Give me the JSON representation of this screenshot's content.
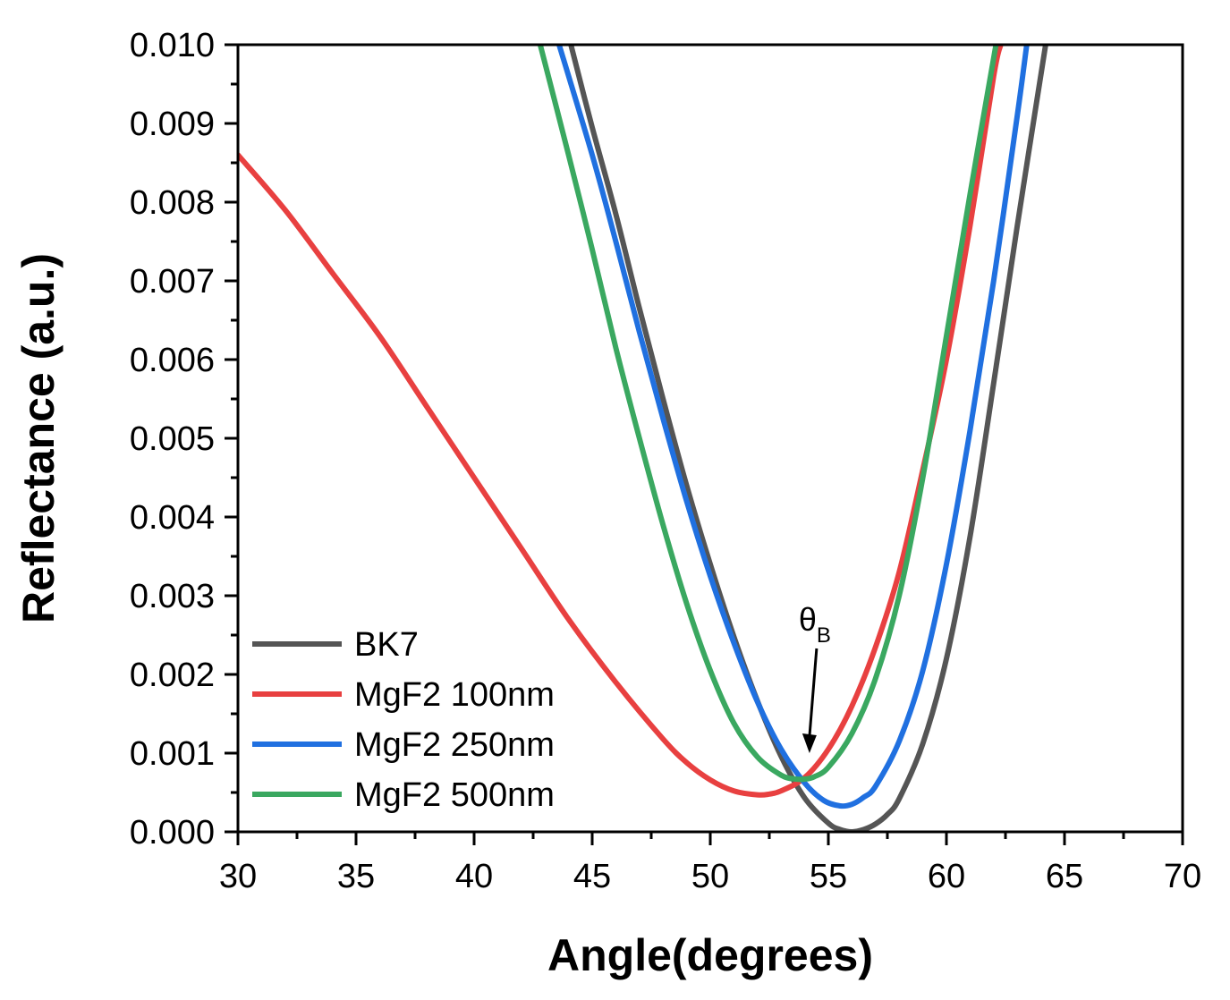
{
  "chart_data": {
    "type": "line",
    "title": "",
    "xlabel": "Angle(degrees)",
    "ylabel": "Reflectance (a.u.)",
    "xlim": [
      30,
      70
    ],
    "ylim": [
      0.0,
      0.01
    ],
    "grid": false,
    "legend_position": "bottom-left",
    "x_ticks": [
      "30",
      "35",
      "40",
      "45",
      "50",
      "55",
      "60",
      "65",
      "70"
    ],
    "y_ticks": [
      "0.000",
      "0.001",
      "0.002",
      "0.003",
      "0.004",
      "0.005",
      "0.006",
      "0.007",
      "0.008",
      "0.009",
      "0.010"
    ],
    "series": [
      {
        "name": "BK7",
        "color": "#555555",
        "x": [
          44.1,
          45,
          46,
          47,
          48,
          49,
          50,
          51,
          52,
          53,
          54,
          55,
          55.5,
          56,
          56.5,
          57,
          57.5,
          58,
          59,
          60,
          61,
          62,
          63,
          64.2
        ],
        "y": [
          0.01,
          0.00895,
          0.00785,
          0.00665,
          0.0055,
          0.0044,
          0.0034,
          0.00248,
          0.00166,
          0.00096,
          0.00043,
          0.00011,
          3e-05,
          0.0,
          3e-05,
          0.0001,
          0.00022,
          0.00042,
          0.00112,
          0.0022,
          0.00375,
          0.0057,
          0.0077,
          0.01
        ]
      },
      {
        "name": "MgF2 100nm",
        "color": "#e84040",
        "x": [
          30,
          32,
          34,
          36,
          38,
          40,
          42,
          44,
          46,
          48,
          49,
          50,
          51,
          52,
          52.5,
          53,
          54,
          55,
          56,
          57,
          58,
          59,
          60,
          61,
          62,
          62.3
        ],
        "y": [
          0.0086,
          0.0079,
          0.0071,
          0.0063,
          0.0054,
          0.0045,
          0.0036,
          0.0027,
          0.0019,
          0.00118,
          0.00088,
          0.00066,
          0.00052,
          0.00047,
          0.00048,
          0.00052,
          0.00069,
          0.00105,
          0.0016,
          0.00235,
          0.0033,
          0.0046,
          0.006,
          0.0077,
          0.0096,
          0.01
        ]
      },
      {
        "name": "MgF2 250nm",
        "color": "#2070e0",
        "x": [
          43.6,
          45,
          46,
          47,
          48,
          49,
          50,
          51,
          52,
          53,
          54,
          54.8,
          55.5,
          56,
          56.5,
          57,
          58,
          59,
          60,
          61,
          62,
          63,
          63.4
        ],
        "y": [
          0.01,
          0.0086,
          0.0075,
          0.00635,
          0.00525,
          0.0042,
          0.00325,
          0.0024,
          0.00165,
          0.00105,
          0.00062,
          0.0004,
          0.00033,
          0.00035,
          0.00044,
          0.00058,
          0.00115,
          0.00205,
          0.0034,
          0.0051,
          0.007,
          0.0091,
          0.01
        ]
      },
      {
        "name": "MgF2 500nm",
        "color": "#3aa860",
        "x": [
          42.8,
          44,
          45,
          46,
          47,
          48,
          49,
          50,
          51,
          52,
          53,
          53.6,
          54,
          54.4,
          55,
          56,
          57,
          58,
          59,
          60,
          61,
          62.1
        ],
        "y": [
          0.01,
          0.0086,
          0.0074,
          0.00615,
          0.005,
          0.0039,
          0.0029,
          0.00205,
          0.00138,
          0.00095,
          0.00072,
          0.00067,
          0.00067,
          0.0007,
          0.00082,
          0.00125,
          0.00195,
          0.003,
          0.0045,
          0.0063,
          0.0081,
          0.01
        ]
      }
    ],
    "annotations": [
      {
        "label": "θ",
        "subscript": "B",
        "arrow_to": [
          54.2,
          0.001
        ]
      }
    ]
  }
}
